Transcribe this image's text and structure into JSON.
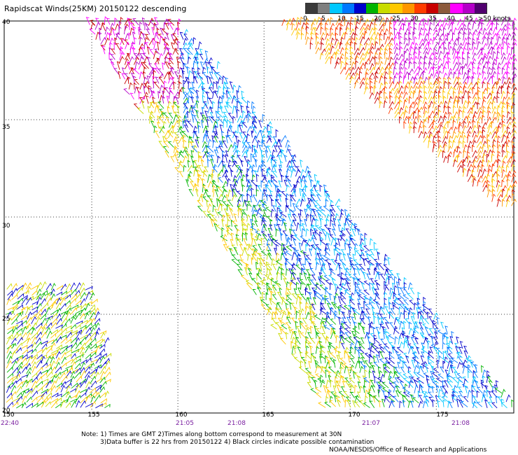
{
  "title": "Rapidscat Winds(25KM) 20150122 descending",
  "scale": {
    "labels": [
      "0",
      "5",
      "10",
      "15",
      "20",
      "25",
      "30",
      "35",
      "40",
      "45",
      ">50 knots"
    ],
    "colors": [
      "#3a3a3a",
      "#7f7f7f",
      "#00c8ff",
      "#0078ff",
      "#0000cc",
      "#00b400",
      "#c8dc00",
      "#ffc800",
      "#ff9600",
      "#ff3c00",
      "#c80000",
      "#8c5a3c",
      "#ff00ff",
      "#b400c8",
      "#50006e"
    ]
  },
  "lat_labels": [
    "40",
    "35",
    "30",
    "25",
    "20"
  ],
  "lon_labels": [
    "150",
    "155",
    "160",
    "165",
    "170",
    "175"
  ],
  "times": [
    "22:40",
    "21:05",
    "21:08",
    "21:07",
    "21:08"
  ],
  "notes": {
    "line1": "Note: 1) Times are GMT 2)Times along bottom correspond to measurement at 30N",
    "line2": "3)Data buffer is 22 hrs from 20150122 4) Black circles indicate possible contamination"
  },
  "credit": "NOAA/NESDIS/Office of Research and Applications"
}
